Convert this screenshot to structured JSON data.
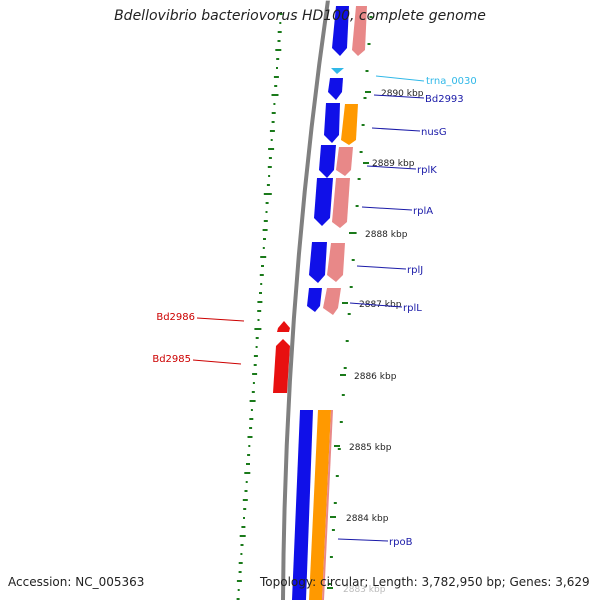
{
  "title": "Bdellovibrio bacteriovorus HD100, complete genome",
  "accession": "Accession: NC_005363",
  "summary": "Topology: circular; Length: 3,782,950 bp; Genes: 3,629",
  "colors": {
    "backbone": "#808080",
    "forward_cds": "#1010e8",
    "reverse_cds": "#e88888",
    "orange_feature": "#ff9900",
    "highlight": "#e81010",
    "trna": "#30b8e8",
    "gc_ticks": "#1a7a1a",
    "label_blue": "#1a1aa8",
    "label_red": "#cc0000",
    "label_cyan": "#30b8e8"
  },
  "scale_labels": [
    "2890 kbp",
    "2889 kbp",
    "2888 kbp",
    "2887 kbp",
    "2886 kbp",
    "2885 kbp",
    "2884 kbp",
    "2883 kbp"
  ],
  "gene_labels": [
    {
      "text": "trna_0030",
      "color": "cyan"
    },
    {
      "text": "Bd2993",
      "color": "blue"
    },
    {
      "text": "nusG",
      "color": "blue"
    },
    {
      "text": "rplK",
      "color": "blue"
    },
    {
      "text": "rplA",
      "color": "blue"
    },
    {
      "text": "rplJ",
      "color": "blue"
    },
    {
      "text": "rplL",
      "color": "blue"
    },
    {
      "text": "rpoB",
      "color": "blue"
    },
    {
      "text": "Bd2986",
      "color": "red"
    },
    {
      "text": "Bd2985",
      "color": "red"
    }
  ]
}
